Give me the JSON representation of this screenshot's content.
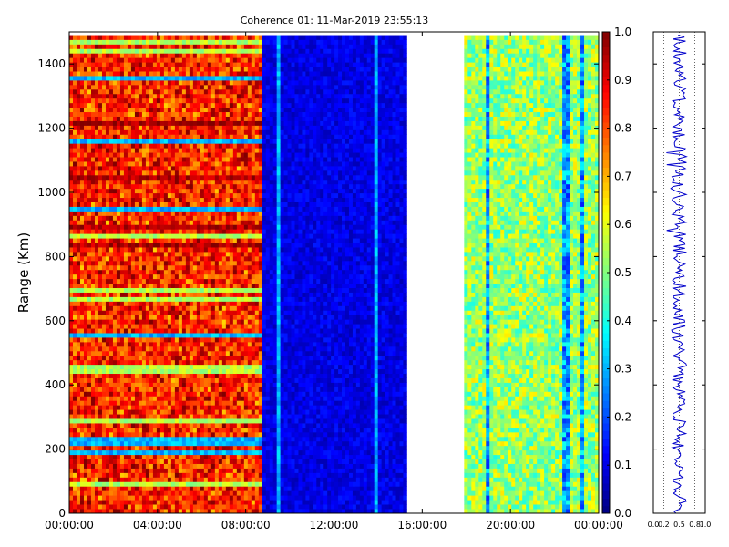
{
  "chart_data": [
    {
      "type": "heatmap",
      "title": "Coherence 01: 11-Mar-2019 23:55:13",
      "ylabel": "Range (Km)",
      "xlabel": "",
      "x_tick_labels": [
        "00:00:00",
        "04:00:00",
        "08:00:00",
        "12:00:00",
        "16:00:00",
        "20:00:00",
        "00:00:00"
      ],
      "x_tick_hours": [
        0,
        4,
        8,
        12,
        16,
        20,
        24
      ],
      "xlim_hours": [
        0,
        24
      ],
      "y_ticks": [
        0,
        200,
        400,
        600,
        800,
        1000,
        1200,
        1400
      ],
      "ylim": [
        0,
        1500
      ],
      "colormap": "jet",
      "clim": [
        0,
        1
      ],
      "colorbar_ticks": [
        "0.0",
        "0.1",
        "0.2",
        "0.3",
        "0.4",
        "0.5",
        "0.6",
        "0.7",
        "0.8",
        "0.9",
        "1.0"
      ],
      "segments": [
        {
          "start_hour": 0.0,
          "end_hour": 8.75,
          "typical_coherence": 0.8
        },
        {
          "start_hour": 8.75,
          "end_hour": 15.3,
          "typical_coherence": 0.1
        },
        {
          "start_hour": 15.3,
          "end_hour": 17.9,
          "typical_coherence": null
        },
        {
          "start_hour": 17.9,
          "end_hour": 24.0,
          "typical_coherence": 0.5
        }
      ]
    },
    {
      "type": "line",
      "title": "",
      "xlabel": "",
      "ylabel": "",
      "x_tick_labels": [
        "0.0",
        "0.2",
        "0.5",
        "0.8",
        "1.0"
      ],
      "xlim": [
        0,
        1
      ],
      "ylim": [
        0,
        1500
      ],
      "grid": true,
      "color": "#0000cc",
      "mean_value": 0.5
    }
  ]
}
